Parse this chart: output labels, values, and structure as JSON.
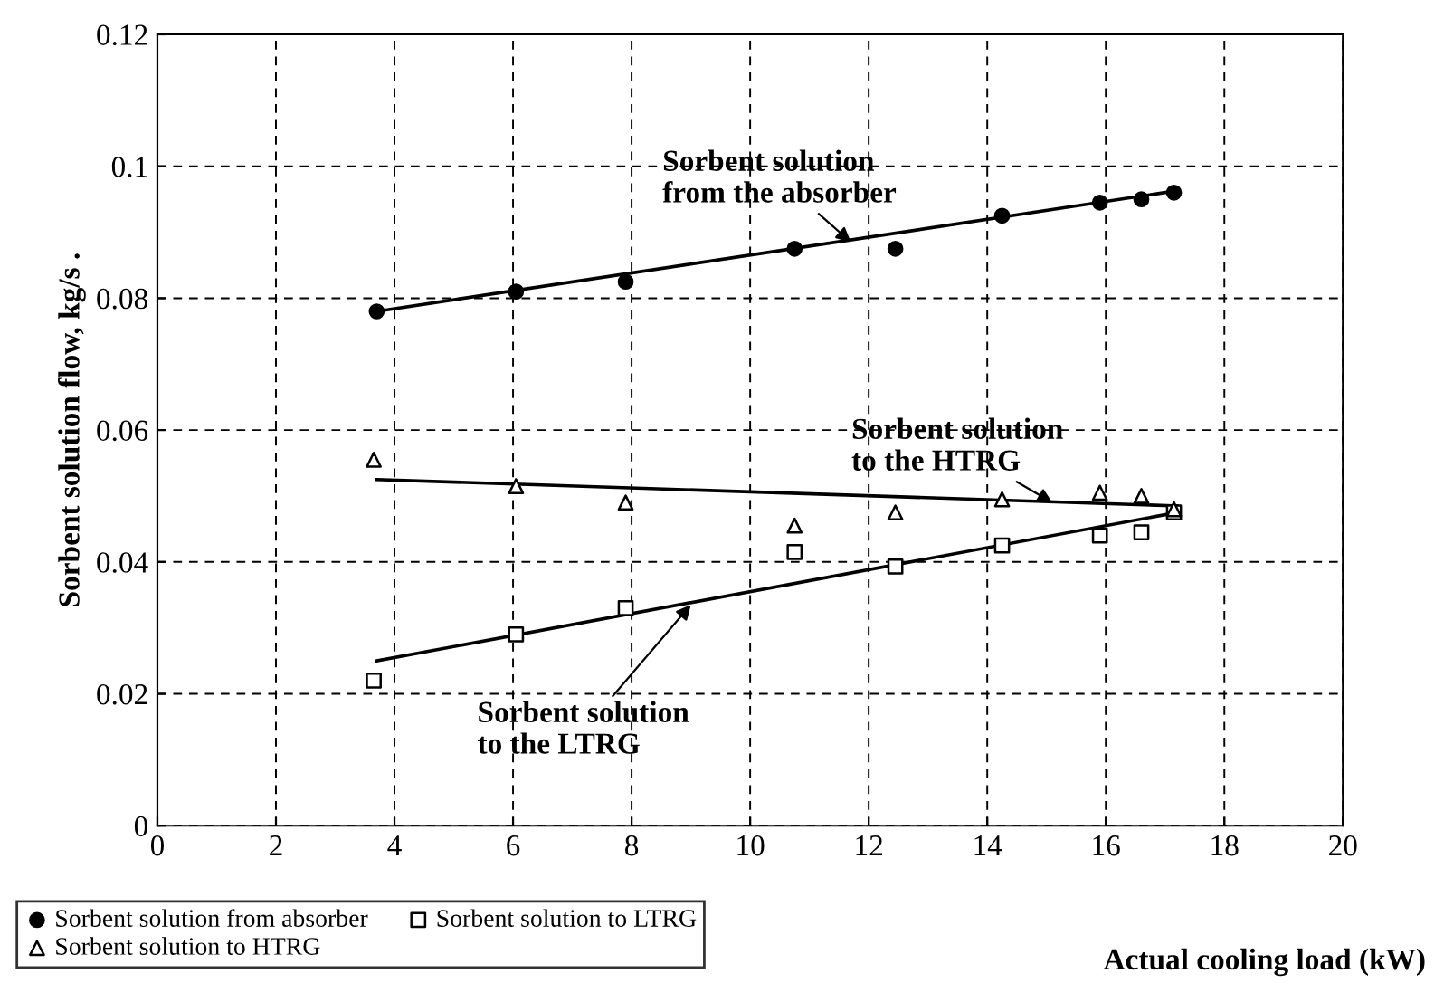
{
  "chart_data": {
    "type": "scatter",
    "xlabel": "Actual cooling load (kW)",
    "ylabel": "Sorbent solution flow, kg/s .",
    "xlim": [
      0,
      20
    ],
    "xticks": [
      0,
      2,
      4,
      6,
      8,
      10,
      12,
      14,
      16,
      18,
      20
    ],
    "ylim": [
      0,
      0.12
    ],
    "yticks": [
      0,
      0.02,
      0.04,
      0.06,
      0.08,
      0.1,
      0.12
    ],
    "grid": true,
    "legend": "bottom left",
    "series": [
      {
        "name": "Sorbent solution from absorber",
        "color": "#000000",
        "marker": "circle",
        "x": [
          3.7,
          6.05,
          7.9,
          10.75,
          12.45,
          14.25,
          15.9,
          16.6,
          17.15
        ],
        "values": [
          0.078,
          0.081,
          0.0825,
          0.0875,
          0.0875,
          0.0925,
          0.0945,
          0.095,
          0.096
        ]
      },
      {
        "name": "Sorbent solution to HTRG",
        "color": "#000000",
        "marker": "triangle",
        "x": [
          3.65,
          6.05,
          7.9,
          10.75,
          12.45,
          14.25,
          15.9,
          16.6,
          17.15
        ],
        "values": [
          0.0555,
          0.0515,
          0.049,
          0.0455,
          0.0475,
          0.0495,
          0.0505,
          0.05,
          0.048
        ]
      },
      {
        "name": "Sorbent solution to LTRG",
        "color": "#000000",
        "marker": "square",
        "x": [
          3.65,
          6.05,
          7.9,
          10.75,
          12.45,
          14.25,
          15.9,
          16.6,
          17.15
        ],
        "values": [
          0.022,
          0.029,
          0.033,
          0.0415,
          0.0393,
          0.0425,
          0.044,
          0.0445,
          0.0475
        ]
      },
      {
        "type": "line",
        "color": "#000000",
        "line_style": "solid",
        "x": [
          3.7,
          17.2
        ],
        "values": [
          0.078,
          0.0963
        ]
      },
      {
        "type": "line",
        "color": "#000000",
        "line_style": "solid",
        "x": [
          3.7,
          17.2
        ],
        "values": [
          0.0525,
          0.0485
        ]
      },
      {
        "type": "line",
        "color": "#000000",
        "line_style": "solid",
        "x": [
          3.7,
          17.2
        ],
        "values": [
          0.025,
          0.0475
        ]
      }
    ],
    "annotations": [
      {
        "text": "Sorbent solution\nfrom the absorber",
        "x": 11.7,
        "y": 0.0885
      },
      {
        "text": "Sorbent solution\nto the HTRG",
        "x": 15.1,
        "y": 0.049
      },
      {
        "text": "Sorbent solution\nto the LTRG",
        "x": 9.0,
        "y": 0.0335
      }
    ]
  }
}
